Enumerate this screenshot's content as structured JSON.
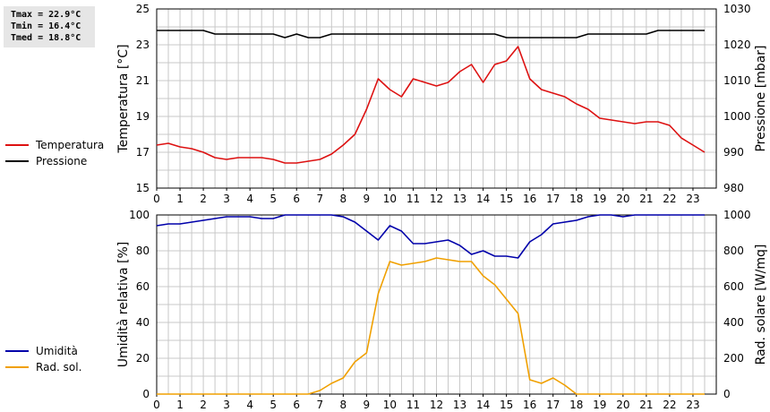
{
  "stats": {
    "tmax": "Tmax = 22.9°C",
    "tmin": "Tmin = 16.4°C",
    "tmed": "Tmed = 18.8°C"
  },
  "colors": {
    "temperatura": "#dd1111",
    "pressione": "#000000",
    "umidita": "#0000aa",
    "rad_sol": "#f0a000"
  },
  "legend": {
    "temperatura": "Temperatura",
    "pressione": "Pressione",
    "umidita": "Umidità",
    "rad_sol": "Rad. sol."
  },
  "chart_data": [
    {
      "type": "line",
      "ylabel": "Temperatura [°C]",
      "y2label": "Pressione [mbar]",
      "xlim": [
        0,
        24
      ],
      "ylim": [
        15,
        25
      ],
      "y2lim": [
        980,
        1030
      ],
      "x_ticks": [
        0,
        1,
        2,
        3,
        4,
        5,
        6,
        7,
        8,
        9,
        10,
        11,
        12,
        13,
        14,
        15,
        16,
        17,
        18,
        19,
        20,
        21,
        22,
        23
      ],
      "y_ticks": [
        15,
        17,
        19,
        21,
        23,
        25
      ],
      "y2_ticks": [
        980,
        990,
        1000,
        1010,
        1020,
        1030
      ],
      "grid": true,
      "series": [
        {
          "name": "Temperatura",
          "axis": "left",
          "x": [
            0,
            0.5,
            1,
            1.5,
            2,
            2.5,
            3,
            3.5,
            4,
            4.5,
            5,
            5.5,
            6,
            6.5,
            7,
            7.5,
            8,
            8.5,
            9,
            9.5,
            10,
            10.5,
            11,
            11.5,
            12,
            12.5,
            13,
            13.5,
            14,
            14.5,
            15,
            15.5,
            16,
            16.5,
            17,
            17.5,
            18,
            18.5,
            19,
            19.5,
            20,
            20.5,
            21,
            21.5,
            22,
            22.5,
            23,
            23.5
          ],
          "y": [
            17.4,
            17.5,
            17.3,
            17.2,
            17.0,
            16.7,
            16.6,
            16.7,
            16.7,
            16.7,
            16.6,
            16.4,
            16.4,
            16.5,
            16.6,
            16.9,
            17.4,
            18.0,
            19.4,
            21.1,
            20.5,
            20.1,
            21.1,
            20.9,
            20.7,
            20.9,
            21.5,
            21.9,
            20.9,
            21.9,
            22.1,
            22.9,
            21.1,
            20.5,
            20.3,
            20.1,
            19.7,
            19.4,
            18.9,
            18.8,
            18.7,
            18.6,
            18.7,
            18.7,
            18.5,
            17.8,
            17.4,
            17.0
          ]
        },
        {
          "name": "Pressione",
          "axis": "right",
          "x": [
            0,
            0.5,
            1,
            1.5,
            2,
            2.5,
            3,
            3.5,
            4,
            4.5,
            5,
            5.5,
            6,
            6.5,
            7,
            7.5,
            8,
            8.5,
            9,
            9.5,
            10,
            10.5,
            11,
            11.5,
            12,
            12.5,
            13,
            13.5,
            14,
            14.5,
            15,
            15.5,
            16,
            16.5,
            17,
            17.5,
            18,
            18.5,
            19,
            19.5,
            20,
            20.5,
            21,
            21.5,
            22,
            22.5,
            23,
            23.5
          ],
          "y": [
            1024,
            1024,
            1024,
            1024,
            1024,
            1023,
            1023,
            1023,
            1023,
            1023,
            1023,
            1022,
            1023,
            1022,
            1022,
            1023,
            1023,
            1023,
            1023,
            1023,
            1023,
            1023,
            1023,
            1023,
            1023,
            1023,
            1023,
            1023,
            1023,
            1023,
            1022,
            1022,
            1022,
            1022,
            1022,
            1022,
            1022,
            1023,
            1023,
            1023,
            1023,
            1023,
            1023,
            1024,
            1024,
            1024,
            1024,
            1024
          ]
        }
      ]
    },
    {
      "type": "line",
      "ylabel": "Umidità relativa [%]",
      "y2label": "Rad. solare [W/mq]",
      "xlim": [
        0,
        24
      ],
      "ylim": [
        0,
        100
      ],
      "y2lim": [
        0,
        1000
      ],
      "x_ticks": [
        0,
        1,
        2,
        3,
        4,
        5,
        6,
        7,
        8,
        9,
        10,
        11,
        12,
        13,
        14,
        15,
        16,
        17,
        18,
        19,
        20,
        21,
        22,
        23
      ],
      "y_ticks": [
        0,
        20,
        40,
        60,
        80,
        100
      ],
      "y2_ticks": [
        0,
        200,
        400,
        600,
        800,
        1000
      ],
      "grid": true,
      "series": [
        {
          "name": "Umidità",
          "axis": "left",
          "x": [
            0,
            0.5,
            1,
            1.5,
            2,
            2.5,
            3,
            3.5,
            4,
            4.5,
            5,
            5.5,
            6,
            6.5,
            7,
            7.5,
            8,
            8.5,
            9,
            9.5,
            10,
            10.5,
            11,
            11.5,
            12,
            12.5,
            13,
            13.5,
            14,
            14.5,
            15,
            15.5,
            16,
            16.5,
            17,
            17.5,
            18,
            18.5,
            19,
            19.5,
            20,
            20.5,
            21,
            21.5,
            22,
            22.5,
            23,
            23.5
          ],
          "y": [
            94,
            95,
            95,
            96,
            97,
            98,
            99,
            99,
            99,
            98,
            98,
            100,
            100,
            100,
            100,
            100,
            99,
            96,
            91,
            86,
            94,
            91,
            84,
            84,
            85,
            86,
            83,
            78,
            80,
            77,
            77,
            76,
            85,
            89,
            95,
            96,
            97,
            99,
            100,
            100,
            99,
            100,
            100,
            100,
            100,
            100,
            100,
            100
          ]
        },
        {
          "name": "Rad. sol.",
          "axis": "right",
          "x": [
            0,
            0.5,
            1,
            1.5,
            2,
            2.5,
            3,
            3.5,
            4,
            4.5,
            5,
            5.5,
            6,
            6.5,
            7,
            7.5,
            8,
            8.5,
            9,
            9.5,
            10,
            10.5,
            11,
            11.5,
            12,
            12.5,
            13,
            13.5,
            14,
            14.5,
            15,
            15.5,
            16,
            16.5,
            17,
            17.5,
            18,
            18.5,
            19,
            19.5,
            20,
            20.5,
            21,
            21.5,
            22,
            22.5,
            23,
            23.5
          ],
          "y": [
            0,
            0,
            0,
            0,
            0,
            0,
            0,
            0,
            0,
            0,
            0,
            0,
            0,
            0,
            20,
            60,
            90,
            180,
            230,
            560,
            740,
            720,
            730,
            740,
            760,
            750,
            740,
            740,
            660,
            610,
            530,
            450,
            80,
            60,
            90,
            50,
            0,
            0,
            0,
            0,
            0,
            0,
            0,
            0,
            0,
            0,
            0,
            0
          ]
        }
      ]
    }
  ]
}
